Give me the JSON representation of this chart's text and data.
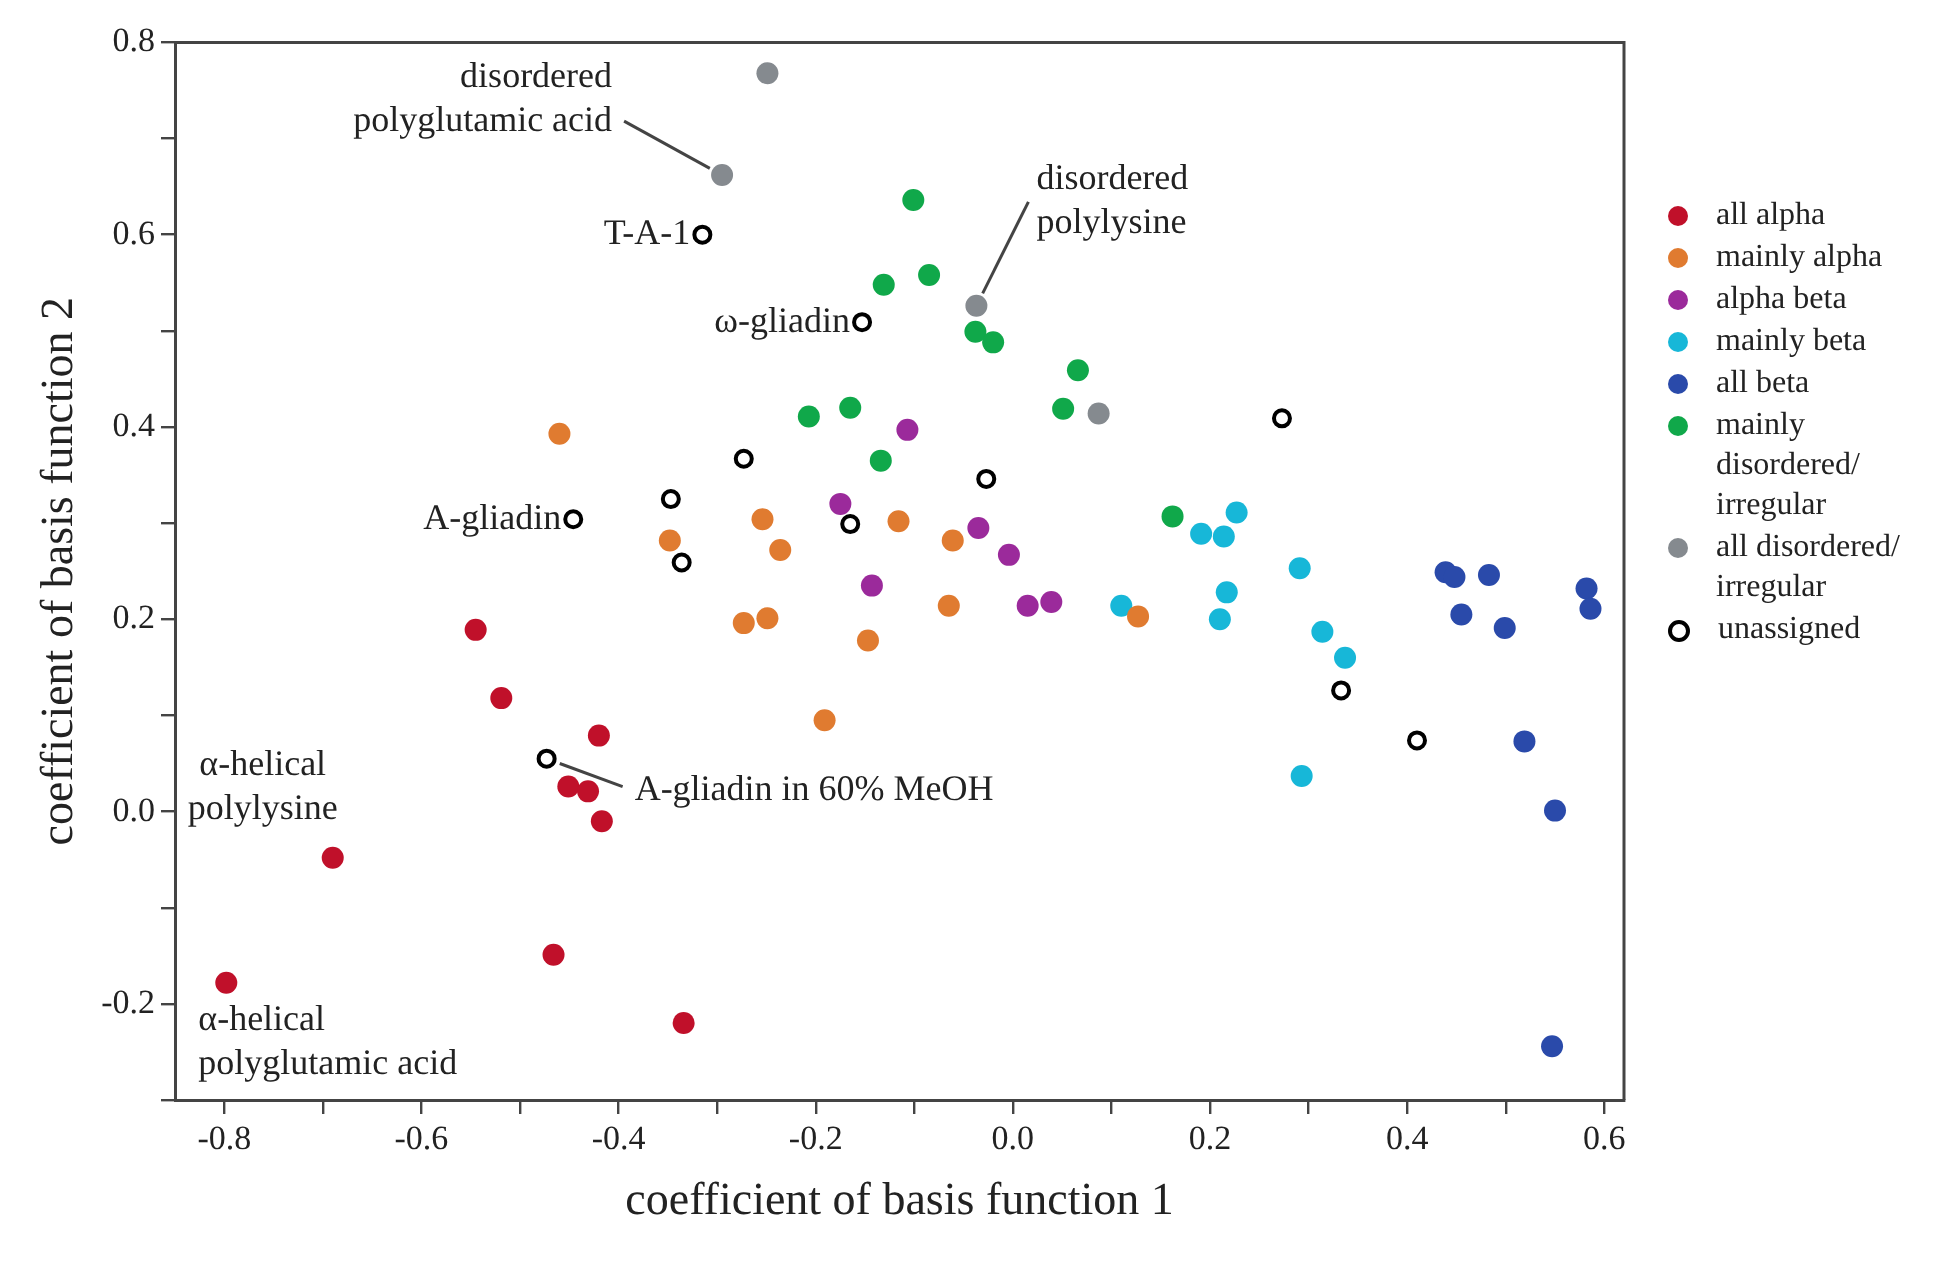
{
  "chart_data": {
    "type": "scatter",
    "xlabel": "coefficient of basis function 1",
    "ylabel": "coefficient of basis function 2",
    "xlim": [
      -0.85,
      0.62
    ],
    "ylim": [
      -0.3,
      0.8
    ],
    "xticks": [
      -0.8,
      {
        "value": -0.7,
        "label": null
      },
      -0.6,
      {
        "value": -0.5,
        "label": null
      },
      -0.4,
      {
        "value": -0.3,
        "label": null
      },
      -0.2,
      {
        "value": -0.1,
        "label": null
      },
      {
        "value": 0,
        "label": "0.0"
      },
      {
        "value": 0.1,
        "label": null
      },
      0.2,
      {
        "value": 0.3,
        "label": null
      },
      0.4,
      {
        "value": 0.5,
        "label": null
      },
      0.6
    ],
    "yticks": [
      {
        "value": -0.3,
        "label": null
      },
      -0.2,
      {
        "value": -0.1,
        "label": null
      },
      {
        "value": 0,
        "label": "0.0"
      },
      {
        "value": 0.1,
        "label": null
      },
      0.2,
      {
        "value": 0.3,
        "label": null
      },
      0.4,
      {
        "value": 0.5,
        "label": null
      },
      0.6,
      {
        "value": 0.7,
        "label": null
      },
      0.8
    ],
    "grid": false,
    "legend": "right",
    "marker": "circle",
    "series": [
      {
        "name": "all alpha",
        "color": "#c0102a",
        "x": [
          -0.545,
          -0.519,
          -0.42,
          -0.451,
          -0.431,
          -0.417,
          -0.69,
          -0.466,
          -0.798,
          -0.334
        ],
        "values": [
          0.189,
          0.118,
          0.079,
          0.026,
          0.021,
          -0.01,
          -0.048,
          -0.149,
          -0.178,
          -0.22
        ]
      },
      {
        "name": "mainly alpha",
        "color": "#e07b30",
        "x": [
          -0.46,
          -0.254,
          -0.348,
          -0.236,
          -0.273,
          -0.249,
          -0.116,
          -0.061,
          -0.065,
          0.127,
          -0.147,
          -0.191
        ],
        "values": [
          0.393,
          0.304,
          0.282,
          0.272,
          0.196,
          0.201,
          0.302,
          0.282,
          0.214,
          0.203,
          0.178,
          0.095
        ]
      },
      {
        "name": "alpha beta",
        "color": "#9b2a9b",
        "x": [
          -0.107,
          -0.175,
          -0.035,
          -0.004,
          -0.143,
          0.015,
          0.039
        ],
        "values": [
          0.397,
          0.32,
          0.295,
          0.267,
          0.235,
          0.214,
          0.218
        ]
      },
      {
        "name": "mainly beta",
        "color": "#17b7d8",
        "x": [
          0.227,
          0.191,
          0.214,
          0.291,
          0.217,
          0.11,
          0.21,
          0.314,
          0.337,
          0.293
        ],
        "values": [
          0.311,
          0.289,
          0.286,
          0.253,
          0.228,
          0.214,
          0.2,
          0.187,
          0.16,
          0.037
        ]
      },
      {
        "name": "all beta",
        "color": "#2a4aaa",
        "x": [
          0.439,
          0.448,
          0.483,
          0.582,
          0.586,
          0.455,
          0.499,
          0.519,
          0.55,
          0.547
        ],
        "values": [
          0.249,
          0.244,
          0.246,
          0.232,
          0.211,
          0.205,
          0.191,
          0.073,
          0.001,
          -0.244
        ]
      },
      {
        "name": "mainly disordered/ irregular",
        "color": "#10a84a",
        "x": [
          -0.101,
          -0.085,
          -0.131,
          -0.038,
          -0.02,
          0.066,
          0.051,
          -0.207,
          -0.165,
          -0.134,
          0.162
        ],
        "values": [
          0.636,
          0.558,
          0.548,
          0.499,
          0.488,
          0.459,
          0.419,
          0.411,
          0.42,
          0.365,
          0.307
        ]
      },
      {
        "name": "all disordered/ irregular",
        "color": "#858a8f",
        "x": [
          -0.249,
          -0.295,
          -0.037,
          0.087
        ],
        "values": [
          0.768,
          0.662,
          0.526,
          0.414
        ]
      },
      {
        "name": "unassigned",
        "color": "#000000",
        "marker": "circle-open",
        "x": [
          -0.315,
          -0.153,
          -0.446,
          -0.347,
          -0.273,
          -0.336,
          -0.027,
          -0.165,
          0.273,
          0.333,
          0.41,
          -0.473
        ],
        "values": [
          0.6,
          0.509,
          0.304,
          0.325,
          0.367,
          0.259,
          0.346,
          0.299,
          0.409,
          0.126,
          0.074,
          0.055
        ]
      }
    ],
    "annotations": [
      {
        "text": "disordered polyglutamic acid",
        "x": -0.295,
        "y": 0.662
      },
      {
        "text": "T-A-1",
        "x": -0.315,
        "y": 0.6
      },
      {
        "text": "ω-gliadin",
        "x": -0.153,
        "y": 0.509
      },
      {
        "text": "disordered polylysine",
        "x": -0.037,
        "y": 0.526
      },
      {
        "text": "A-gliadin",
        "x": -0.446,
        "y": 0.304
      },
      {
        "text": "α-helical polylysine",
        "x": -0.69,
        "y": -0.048
      },
      {
        "text": "α-helical polyglutamic acid",
        "x": -0.798,
        "y": -0.178
      },
      {
        "text": "A-gliadin in 60% MeOH",
        "x": -0.473,
        "y": 0.055
      }
    ]
  }
}
